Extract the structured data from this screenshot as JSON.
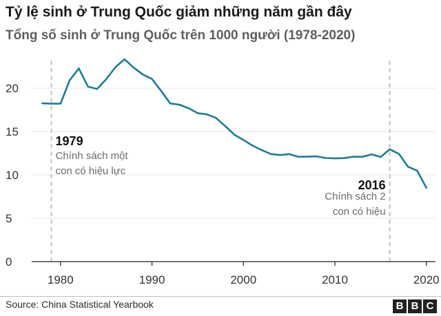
{
  "header": {
    "title": "Tỷ lệ sinh ở Trung Quốc giảm những năm gần đây",
    "subtitle": "Tổng số sinh ở Trung Quốc trên 1000 người (1978-2020)"
  },
  "footer": {
    "source": "Source: China Statistical Yearbook",
    "logo_letters": [
      "B",
      "B",
      "C"
    ]
  },
  "colors": {
    "line": "#1f7a93",
    "grid": "#e6e6e6",
    "axis": "#444444",
    "marker": "#c2c2c2",
    "annotation_year": "#111111",
    "annotation_text": "#6b6b6b"
  },
  "chart_data": {
    "type": "line",
    "title": "Tỷ lệ sinh ở Trung Quốc giảm những năm gần đây",
    "subtitle": "Tổng số sinh ở Trung Quốc trên 1000 người (1978-2020)",
    "xlabel": "",
    "ylabel": "",
    "xlim": [
      1977,
      2021
    ],
    "ylim": [
      0,
      23.5
    ],
    "grid": true,
    "x_ticks": [
      1980,
      1990,
      2000,
      2010,
      2020
    ],
    "y_ticks": [
      0,
      5,
      10,
      15,
      20
    ],
    "x": [
      1978,
      1979,
      1980,
      1981,
      1982,
      1983,
      1984,
      1985,
      1986,
      1987,
      1988,
      1989,
      1990,
      1991,
      1992,
      1993,
      1994,
      1995,
      1996,
      1997,
      1998,
      1999,
      2000,
      2001,
      2002,
      2003,
      2004,
      2005,
      2006,
      2007,
      2008,
      2009,
      2010,
      2011,
      2012,
      2013,
      2014,
      2015,
      2016,
      2017,
      2018,
      2019,
      2020
    ],
    "series": [
      {
        "values": [
          18.25,
          18.21,
          18.21,
          20.91,
          22.28,
          20.19,
          19.9,
          21.04,
          22.43,
          23.33,
          22.37,
          21.58,
          21.06,
          19.68,
          18.24,
          18.09,
          17.7,
          17.12,
          16.98,
          16.57,
          15.64,
          14.64,
          14.03,
          13.38,
          12.86,
          12.41,
          12.29,
          12.4,
          12.09,
          12.1,
          12.14,
          11.95,
          11.9,
          11.93,
          12.1,
          12.08,
          12.37,
          12.07,
          12.95,
          12.43,
          10.94,
          10.48,
          8.52
        ]
      }
    ],
    "annotations": [
      {
        "x": 1979,
        "year": "1979",
        "text_lines": [
          "Chính sách một",
          "con có hiệu lực"
        ]
      },
      {
        "x": 2016,
        "year": "2016",
        "text_lines": [
          "Chính sách 2",
          "con có hiệu"
        ]
      }
    ]
  }
}
